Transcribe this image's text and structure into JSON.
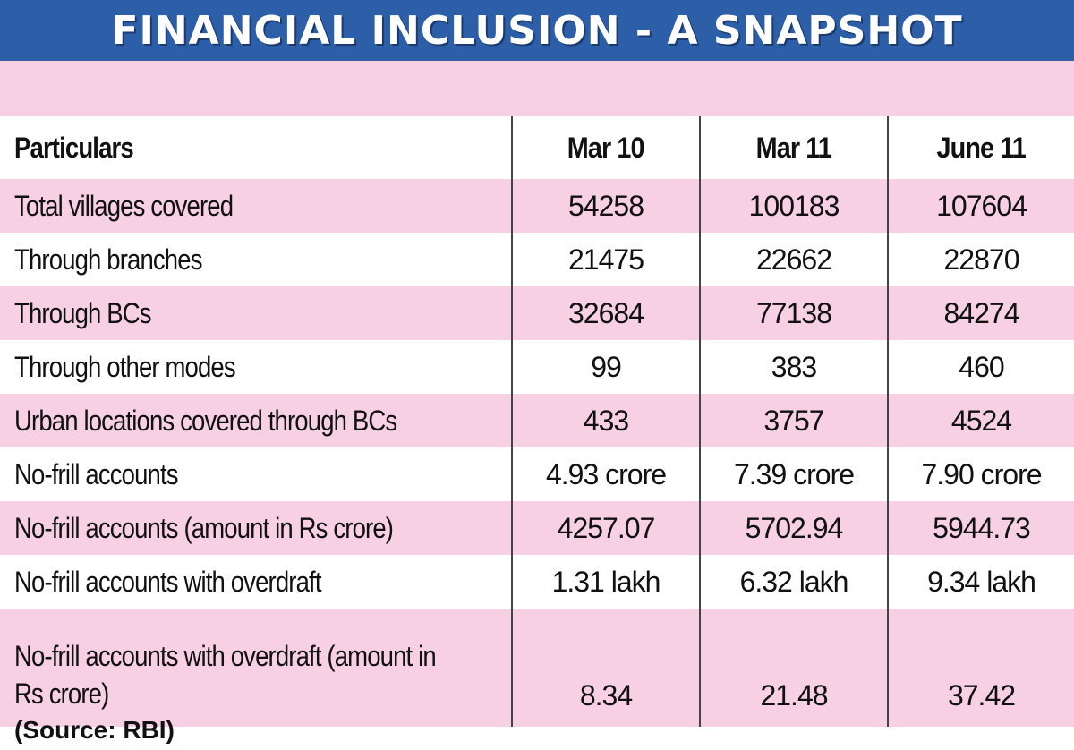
{
  "title": "FINANCIAL INCLUSION - A SNAPSHOT",
  "source": "(Source: RBI)",
  "colors": {
    "banner": "#2d5ea8",
    "row_pink": "#f7d0e3"
  },
  "chart_data": {
    "type": "table",
    "title": "FINANCIAL INCLUSION - A SNAPSHOT",
    "columns": [
      "Particulars",
      "Mar 10",
      "Mar 11",
      "June 11"
    ],
    "rows": [
      [
        "Total villages covered",
        "54258",
        "100183",
        "107604"
      ],
      [
        "Through branches",
        "21475",
        "22662",
        "22870"
      ],
      [
        "Through BCs",
        "32684",
        "77138",
        "84274"
      ],
      [
        "Through other modes",
        "99",
        "383",
        "460"
      ],
      [
        "Urban locations covered through BCs",
        "433",
        "3757",
        "4524"
      ],
      [
        "No-frill accounts",
        "4.93 crore",
        "7.39 crore",
        "7.90 crore"
      ],
      [
        "No-frill accounts (amount in Rs crore)",
        "4257.07",
        "5702.94",
        "5944.73"
      ],
      [
        "No-frill accounts with overdraft",
        "1.31 lakh",
        "6.32 lakh",
        "9.34 lakh"
      ],
      [
        "No-frill accounts with overdraft (amount in Rs crore)",
        "8.34",
        "21.48",
        "37.42"
      ]
    ]
  }
}
